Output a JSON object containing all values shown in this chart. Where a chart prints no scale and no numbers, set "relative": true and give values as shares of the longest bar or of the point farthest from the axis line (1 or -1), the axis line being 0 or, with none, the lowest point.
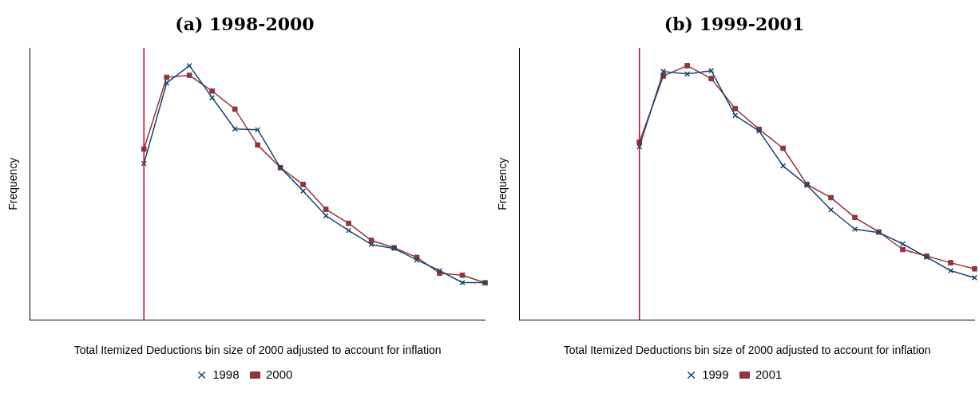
{
  "chart_data": [
    {
      "type": "line",
      "title": "(a) 1998-2000",
      "xlabel": "Total Itemized Deductions bin size of 2000 adjusted to account for inflation",
      "ylabel": "Frequency",
      "relative": true,
      "legend": "bottom",
      "categories": [
        null,
        null,
        null,
        null,
        null,
        null,
        null,
        null,
        null,
        null,
        null,
        null,
        null,
        null,
        null,
        null,
        null,
        null,
        null,
        null,
        null
      ],
      "series": [
        {
          "name": "1998",
          "color": "#1a476f",
          "marker": "cross",
          "values": [
            null,
            null,
            null,
            null,
            null,
            0.615,
            0.932,
            1,
            0.874,
            0.751,
            0.748,
            0.599,
            0.507,
            0.41,
            0.352,
            0.297,
            0.281,
            0.236,
            0.194,
            0.147,
            0.147
          ]
        },
        {
          "name": "2000",
          "color": "#90353b",
          "marker": "square",
          "values": [
            null,
            null,
            null,
            null,
            null,
            0.672,
            0.954,
            0.962,
            0.9,
            0.829,
            0.688,
            0.599,
            0.533,
            0.435,
            0.38,
            0.313,
            0.284,
            0.246,
            0.184,
            0.176,
            0.146
          ]
        }
      ]
    },
    {
      "type": "line",
      "title": "(b) 1999-2001",
      "xlabel": "Total Itemized Deductions bin size of 2000 adjusted to account for inflation",
      "ylabel": "Frequency",
      "relative": true,
      "legend": "bottom",
      "categories": [
        null,
        null,
        null,
        null,
        null,
        null,
        null,
        null,
        null,
        null,
        null,
        null,
        null,
        null,
        null,
        null,
        null,
        null,
        null,
        null
      ],
      "series": [
        {
          "name": "1999",
          "color": "#1a476f",
          "marker": "cross",
          "values": [
            null,
            null,
            null,
            null,
            null,
            0.681,
            0.977,
            0.967,
            0.98,
            0.804,
            0.743,
            0.606,
            0.53,
            0.433,
            0.357,
            0.344,
            0.299,
            0.247,
            0.194,
            0.166
          ]
        },
        {
          "name": "2001",
          "color": "#90353b",
          "marker": "square",
          "values": [
            null,
            null,
            null,
            null,
            null,
            0.699,
            0.959,
            1,
            0.949,
            0.831,
            0.75,
            0.675,
            0.533,
            0.481,
            0.403,
            0.346,
            0.277,
            0.251,
            0.225,
            0.201
          ]
        }
      ]
    }
  ]
}
